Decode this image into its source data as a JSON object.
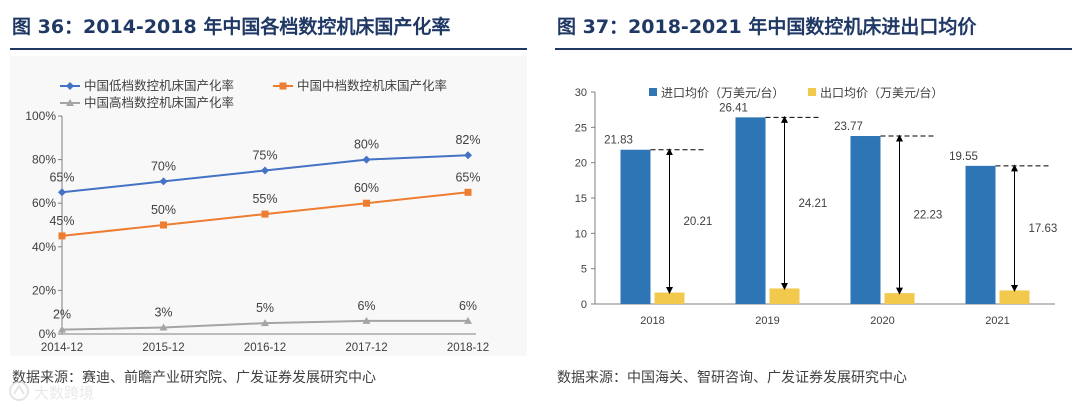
{
  "left": {
    "title": "图 36：2014-2018 年中国各档数控机床国产化率",
    "source": "数据来源：赛迪、前瞻产业研究院、广发证券发展研究中心"
  },
  "right": {
    "title": "图 37：2018-2021 年中国数控机床进出口均价",
    "source": "数据来源：中国海关、智研咨询、广发证券发展研究中心"
  },
  "watermark": {
    "text": "大数跨境"
  },
  "colors": {
    "blue": "#4472c4",
    "orange": "#ed7d31",
    "gray": "#a5a5a5",
    "barBlue": "#2e75b6",
    "barGold": "#f2c94c",
    "title": "#1f3864"
  },
  "chart_data": [
    {
      "type": "line",
      "title": "2014-2018 年中国各档数控机床国产化率",
      "categories": [
        "2014-12",
        "2015-12",
        "2016-12",
        "2017-12",
        "2018-12"
      ],
      "series": [
        {
          "name": "中国低档数控机床国产化率",
          "values": [
            65,
            70,
            75,
            80,
            82
          ],
          "labels": [
            "65%",
            "70%",
            "75%",
            "80%",
            "82%"
          ],
          "color": "#4472c4",
          "marker": "diamond"
        },
        {
          "name": "中国中档数控机床国产化率",
          "values": [
            45,
            50,
            55,
            60,
            65
          ],
          "labels": [
            "45%",
            "50%",
            "55%",
            "60%",
            "65%"
          ],
          "color": "#ed7d31",
          "marker": "square"
        },
        {
          "name": "中国高档数控机床国产化率",
          "values": [
            2,
            3,
            5,
            6,
            6
          ],
          "labels": [
            "2%",
            "3%",
            "5%",
            "6%",
            "6%"
          ],
          "color": "#a5a5a5",
          "marker": "triangle"
        }
      ],
      "ylim": [
        0,
        100
      ],
      "yticks": [
        "0%",
        "20%",
        "40%",
        "60%",
        "80%",
        "100%"
      ],
      "ytick_values": [
        0,
        20,
        40,
        60,
        80,
        100
      ],
      "legend": "top-left",
      "grid": false
    },
    {
      "type": "bar",
      "title": "2018-2021 年中国数控机床进出口均价",
      "categories": [
        "2018",
        "2019",
        "2020",
        "2021"
      ],
      "series": [
        {
          "name": "进口均价（万美元/台）",
          "values": [
            21.83,
            26.41,
            23.77,
            19.55
          ],
          "labels": [
            "21.83",
            "26.41",
            "23.77",
            "19.55"
          ],
          "color": "#2e75b6"
        },
        {
          "name": "出口均价（万美元/台）",
          "values": [
            1.62,
            2.2,
            1.54,
            1.92
          ],
          "color": "#f2c94c"
        }
      ],
      "differences": [
        20.21,
        24.21,
        22.23,
        17.63
      ],
      "difference_labels": [
        "20.21",
        "24.21",
        "22.23",
        "17.63"
      ],
      "ylim": [
        0,
        30
      ],
      "yticks": [
        "0",
        "5",
        "10",
        "15",
        "20",
        "25",
        "30"
      ],
      "ytick_values": [
        0,
        5,
        10,
        15,
        20,
        25,
        30
      ],
      "legend": "top",
      "grid": false
    }
  ]
}
